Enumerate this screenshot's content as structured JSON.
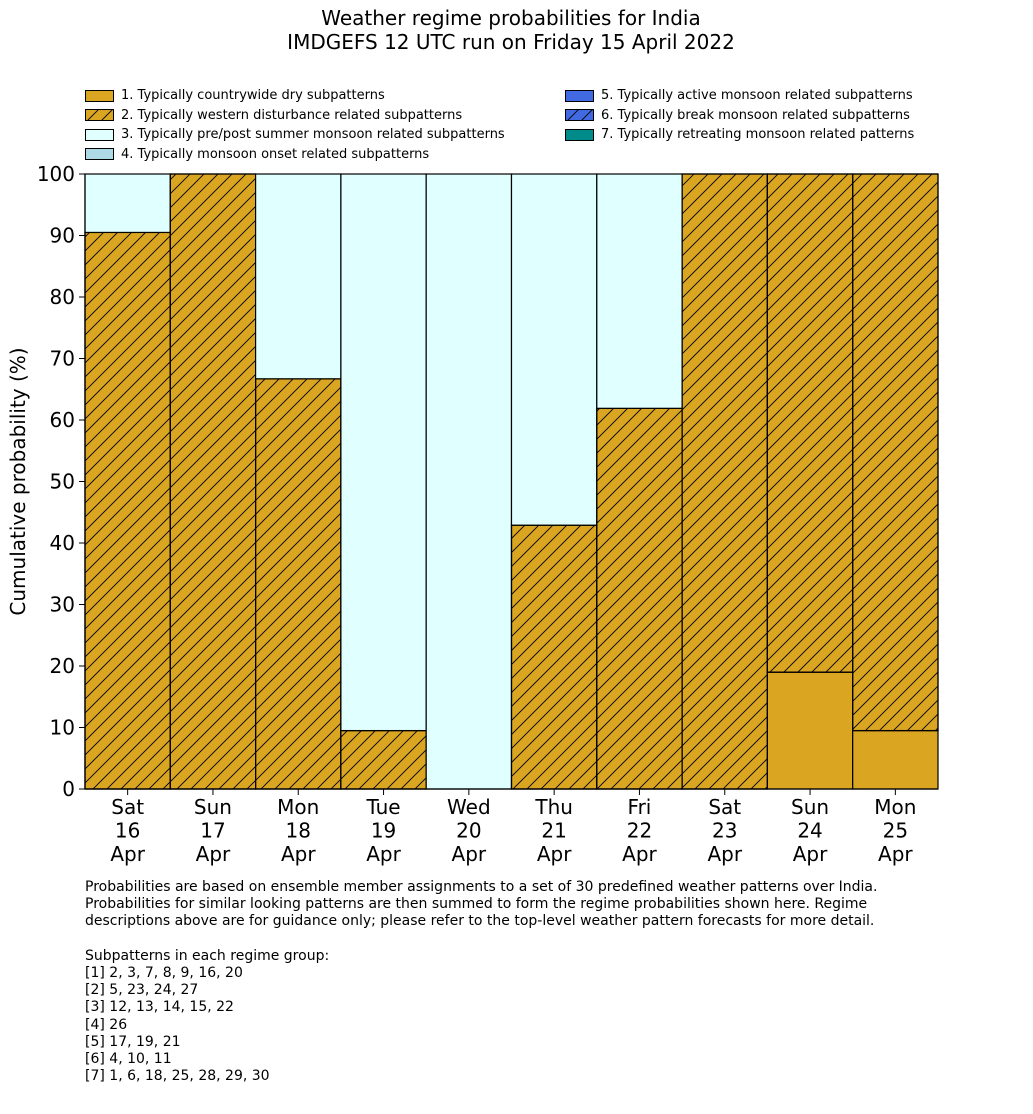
{
  "title": [
    "Weather regime probabilities for India",
    "IMDGEFS 12 UTC run on Friday 15 April 2022"
  ],
  "legend": [
    {
      "label": "1. Typically countrywide dry subpatterns",
      "color": "#DAA520",
      "hatch": false
    },
    {
      "label": "2. Typically western disturbance related subpatterns",
      "color": "#DAA520",
      "hatch": true
    },
    {
      "label": "3. Typically pre/post summer monsoon related subpatterns",
      "color": "#E0FFFF",
      "hatch": false
    },
    {
      "label": "4. Typically monsoon onset related subpatterns",
      "color": "#ADD8E6",
      "hatch": false
    },
    {
      "label": "5. Typically active monsoon related subpatterns",
      "color": "#4169E1",
      "hatch": false
    },
    {
      "label": "6. Typically break monsoon related subpatterns",
      "color": "#4169E1",
      "hatch": true
    },
    {
      "label": "7. Typically retreating monsoon related patterns",
      "color": "#008B8B",
      "hatch": false
    }
  ],
  "chart_data": {
    "type": "bar",
    "stacked": true,
    "ylabel": "Cumulative probability (%)",
    "ylim": [
      0,
      100
    ],
    "yticks": [
      0,
      10,
      20,
      30,
      40,
      50,
      60,
      70,
      80,
      90,
      100
    ],
    "grid": false,
    "legend_placement": "top",
    "categories": [
      [
        "Sat",
        "16",
        "Apr"
      ],
      [
        "Sun",
        "17",
        "Apr"
      ],
      [
        "Mon",
        "18",
        "Apr"
      ],
      [
        "Tue",
        "19",
        "Apr"
      ],
      [
        "Wed",
        "20",
        "Apr"
      ],
      [
        "Thu",
        "21",
        "Apr"
      ],
      [
        "Fri",
        "22",
        "Apr"
      ],
      [
        "Sat",
        "23",
        "Apr"
      ],
      [
        "Sun",
        "24",
        "Apr"
      ],
      [
        "Mon",
        "25",
        "Apr"
      ]
    ],
    "series": [
      {
        "name": "1. Typically countrywide dry subpatterns",
        "values": [
          0,
          0,
          0,
          0,
          0,
          0,
          0,
          0,
          19.0,
          9.5
        ]
      },
      {
        "name": "2. Typically western disturbance related subpatterns",
        "values": [
          90.5,
          100,
          66.7,
          9.5,
          0,
          42.9,
          61.9,
          100,
          81.0,
          90.5
        ]
      },
      {
        "name": "3. Typically pre/post summer monsoon related subpatterns",
        "values": [
          9.5,
          0,
          33.3,
          90.5,
          100,
          57.1,
          38.1,
          0,
          0,
          0
        ]
      },
      {
        "name": "4. Typically monsoon onset related subpatterns",
        "values": [
          0,
          0,
          0,
          0,
          0,
          0,
          0,
          0,
          0,
          0
        ]
      },
      {
        "name": "5. Typically active monsoon related subpatterns",
        "values": [
          0,
          0,
          0,
          0,
          0,
          0,
          0,
          0,
          0,
          0
        ]
      },
      {
        "name": "6. Typically break monsoon related subpatterns",
        "values": [
          0,
          0,
          0,
          0,
          0,
          0,
          0,
          0,
          0,
          0
        ]
      },
      {
        "name": "7. Typically retreating monsoon related patterns",
        "values": [
          0,
          0,
          0,
          0,
          0,
          0,
          0,
          0,
          0,
          0
        ]
      }
    ]
  },
  "footer": {
    "description": [
      "Probabilities are based on ensemble member assignments to a set of 30 predefined weather patterns over India.",
      "Probabilities for similar looking patterns are then summed to form the regime probabilities shown here. Regime",
      "descriptions above are for guidance only; please refer to the top-level weather pattern forecasts for more detail."
    ],
    "groups_heading": "Subpatterns in each regime group:",
    "groups": [
      "[1] 2, 3, 7, 8, 9, 16, 20",
      "[2] 5, 23, 24, 27",
      "[3] 12, 13, 14, 15, 22",
      "[4] 26",
      "[5] 17, 19, 21",
      "[6] 4, 10, 11",
      "[7] 1, 6, 18, 25, 28, 29, 30"
    ]
  }
}
